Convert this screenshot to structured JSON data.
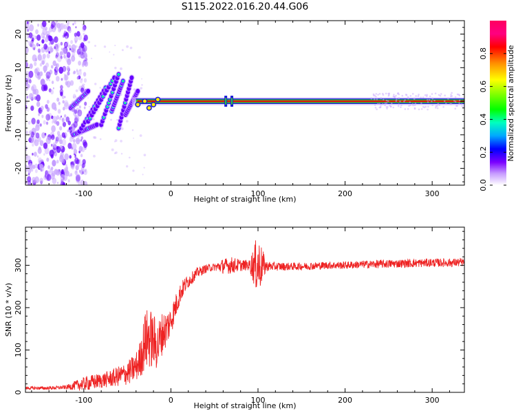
{
  "title": "S115.2022.016.20.44.G06",
  "colors": {
    "snr_line": "#ee2222",
    "carrier_core": "#e01010",
    "carrier_halo": "#33cc33",
    "carrier_edge": "#1b1bd8",
    "low_amp": "#c9a6ff",
    "mid_amp": "#6600ff"
  },
  "chart_data": [
    {
      "type": "heatmap",
      "name_ref": "spectrogram",
      "xlabel": "Height of straight line (km)",
      "ylabel": "Frequency (Hz)",
      "xlim": [
        -167,
        337
      ],
      "ylim": [
        -25,
        24
      ],
      "xticks": [
        -100,
        0,
        100,
        200,
        300
      ],
      "yticks": [
        -20,
        -10,
        0,
        10,
        20
      ],
      "grid": false,
      "carrier_frequency": 0,
      "carrier_start_km": -40,
      "stripes": [
        {
          "x0": -115,
          "y0": -2,
          "x1": -95,
          "y1": 3
        },
        {
          "x0": -112,
          "y0": -10,
          "x1": -85,
          "y1": -7
        },
        {
          "x0": -105,
          "y0": -9,
          "x1": -75,
          "y1": 4
        },
        {
          "x0": -95,
          "y0": -6,
          "x1": -65,
          "y1": 7
        },
        {
          "x0": -80,
          "y0": -7,
          "x1": -60,
          "y1": 8
        },
        {
          "x0": -68,
          "y0": -3,
          "x1": -55,
          "y1": 6
        },
        {
          "x0": -60,
          "y0": -8,
          "x1": -45,
          "y1": 7
        },
        {
          "x0": -52,
          "y0": -4,
          "x1": -38,
          "y1": 3
        }
      ],
      "colorbar": {
        "label": "Normalized spectral amplitude",
        "range": [
          0,
          1
        ],
        "ticks": [
          "0.0",
          "0.2",
          "0.4",
          "0.6",
          "0.8"
        ],
        "tick_values": [
          0,
          0.2,
          0.4,
          0.6,
          0.8
        ]
      }
    },
    {
      "type": "line",
      "name_ref": "snr",
      "xlabel": "Height of straight line (km)",
      "ylabel": "SNR (10 * v/v)",
      "xlim": [
        -167,
        337
      ],
      "ylim": [
        0,
        390
      ],
      "xticks": [
        -100,
        0,
        100,
        200,
        300
      ],
      "yticks": [
        0,
        100,
        200,
        300
      ],
      "grid": false,
      "series": [
        {
          "x": [
            -167,
            -140,
            -120,
            -105,
            -95,
            -80,
            -70,
            -60,
            -50,
            -40,
            -35,
            -30,
            -25,
            -20,
            -15,
            -10,
            -5,
            0,
            5,
            10,
            15,
            20,
            25,
            30,
            40,
            50,
            60,
            70,
            80,
            90,
            95,
            100,
            105,
            110,
            120,
            140,
            160,
            180,
            200,
            220,
            240,
            260,
            280,
            300,
            320,
            337
          ],
          "y": [
            10,
            10,
            12,
            18,
            22,
            28,
            32,
            38,
            45,
            60,
            80,
            120,
            130,
            120,
            110,
            140,
            150,
            170,
            200,
            230,
            250,
            262,
            272,
            282,
            292,
            296,
            298,
            300,
            300,
            300,
            300,
            300,
            299,
            298,
            297,
            297,
            298,
            300,
            300,
            302,
            303,
            304,
            305,
            306,
            306,
            307
          ],
          "noise": [
            4,
            4,
            5,
            14,
            18,
            18,
            20,
            24,
            28,
            35,
            45,
            70,
            75,
            65,
            60,
            50,
            45,
            35,
            30,
            25,
            20,
            16,
            14,
            12,
            10,
            9,
            18,
            20,
            14,
            12,
            45,
            75,
            40,
            12,
            10,
            9,
            9,
            9,
            9,
            9,
            10,
            10,
            10,
            10,
            10,
            10
          ]
        }
      ]
    }
  ]
}
